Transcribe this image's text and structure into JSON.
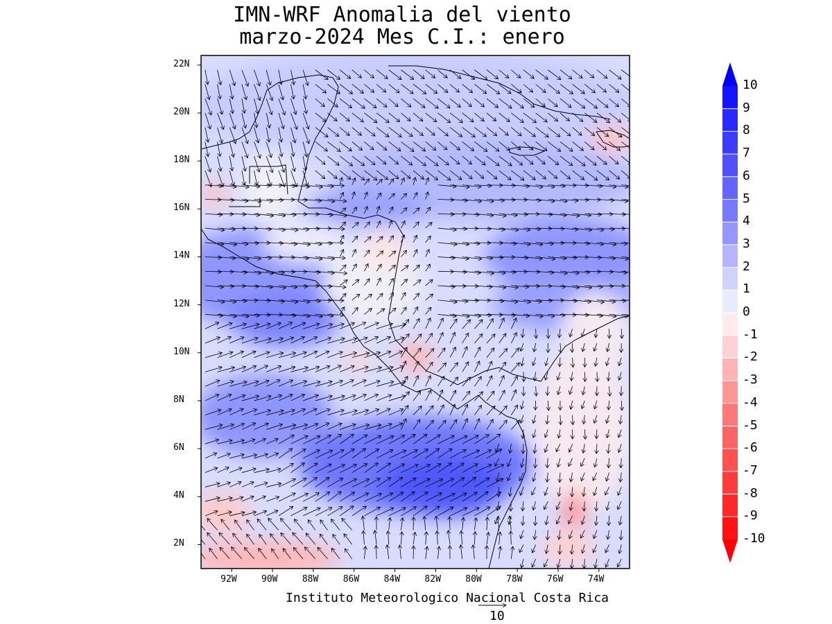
{
  "title": {
    "line1": "IMN-WRF Anomalia del viento",
    "line2": "marzo-2024 Mes C.I.: enero"
  },
  "footer": {
    "institution": "Instituto Meteorologico Nacional Costa Rica",
    "reference_vector_value": "10"
  },
  "map": {
    "region": "Central America & western Caribbean",
    "lon_range": [
      -93.5,
      -72.5
    ],
    "lat_range": [
      1,
      22.4
    ],
    "lat_ticks": [
      "2N",
      "4N",
      "6N",
      "8N",
      "10N",
      "12N",
      "14N",
      "16N",
      "18N",
      "20N",
      "22N"
    ],
    "lon_ticks": [
      "92W",
      "90W",
      "88W",
      "86W",
      "84W",
      "82W",
      "80W",
      "78W",
      "76W",
      "74W"
    ],
    "field": "wind anomaly (m/s), shaded with wind vectors"
  },
  "colorbar": {
    "labels": [
      "10",
      "9",
      "8",
      "7",
      "6",
      "5",
      "4",
      "3",
      "2",
      "1",
      "0",
      "-1",
      "-2",
      "-3",
      "-4",
      "-5",
      "-6",
      "-7",
      "-8",
      "-9",
      "-10"
    ],
    "colors": [
      "#1414ff",
      "#2828ff",
      "#3c3cff",
      "#5050ff",
      "#6464ff",
      "#7878ff",
      "#9696ff",
      "#b4b4ff",
      "#d2d2ff",
      "#ebebff",
      "#ffebeb",
      "#ffd2d2",
      "#ffb4b4",
      "#ff9696",
      "#ff7878",
      "#ff6464",
      "#ff5050",
      "#ff3c3c",
      "#ff2828",
      "#ff1414"
    ],
    "max_arrow_color": "#0000ff",
    "min_arrow_color": "#ff0000"
  }
}
